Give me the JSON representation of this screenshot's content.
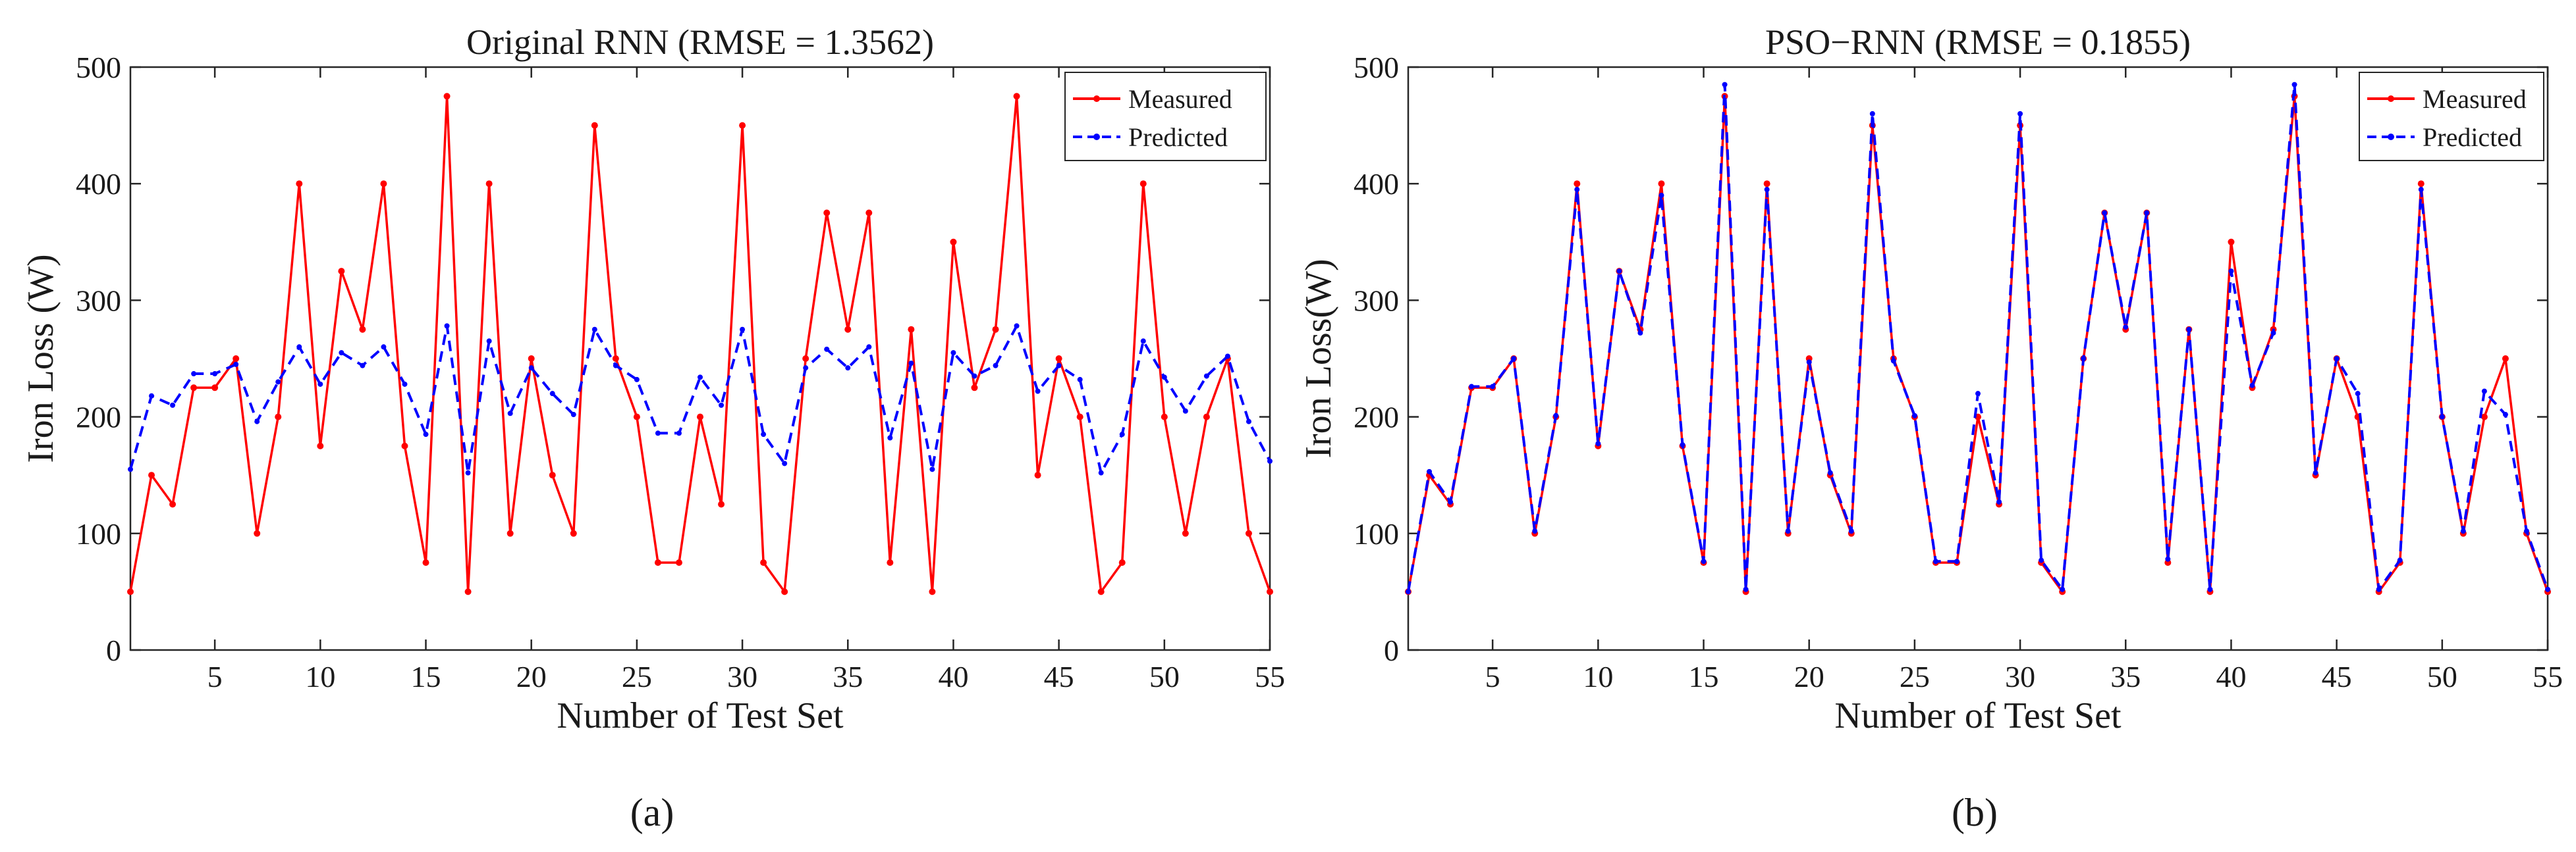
{
  "chart_data": [
    {
      "type": "line",
      "id": "a",
      "title": "Original RNN (RMSE = 1.3562)",
      "xlabel": "Number of Test Set",
      "ylabel": "Iron Loss (W)",
      "caption": "(a)",
      "xlim": [
        1,
        55
      ],
      "ylim": [
        0,
        500
      ],
      "xticks": [
        5,
        10,
        15,
        20,
        25,
        30,
        35,
        40,
        45,
        50,
        55
      ],
      "yticks": [
        0,
        100,
        200,
        300,
        400,
        500
      ],
      "legend_position": "top-right",
      "x": [
        1,
        2,
        3,
        4,
        5,
        6,
        7,
        8,
        9,
        10,
        11,
        12,
        13,
        14,
        15,
        16,
        17,
        18,
        19,
        20,
        21,
        22,
        23,
        24,
        25,
        26,
        27,
        28,
        29,
        30,
        31,
        32,
        33,
        34,
        35,
        36,
        37,
        38,
        39,
        40,
        41,
        42,
        43,
        44,
        45,
        46,
        47,
        48,
        49,
        50,
        51,
        52,
        53,
        54,
        55
      ],
      "series": [
        {
          "name": "Measured",
          "color": "#ff0000",
          "style": "solid",
          "values": [
            50,
            150,
            125,
            225,
            225,
            250,
            100,
            200,
            400,
            175,
            325,
            275,
            400,
            175,
            75,
            475,
            50,
            400,
            100,
            250,
            150,
            100,
            450,
            250,
            200,
            75,
            75,
            200,
            125,
            450,
            75,
            50,
            250,
            375,
            275,
            375,
            75,
            275,
            50,
            350,
            225,
            275,
            475,
            150,
            250,
            200,
            50,
            75,
            400,
            200,
            100,
            200,
            250,
            100,
            50
          ]
        },
        {
          "name": "Predicted",
          "color": "#0000ff",
          "style": "dashed",
          "values": [
            155,
            218,
            210,
            237,
            237,
            245,
            196,
            230,
            260,
            228,
            255,
            244,
            260,
            228,
            185,
            278,
            152,
            265,
            203,
            242,
            220,
            202,
            275,
            244,
            232,
            186,
            186,
            234,
            210,
            275,
            185,
            160,
            242,
            258,
            242,
            260,
            182,
            246,
            155,
            255,
            235,
            244,
            278,
            222,
            244,
            232,
            152,
            185,
            265,
            234,
            205,
            235,
            252,
            196,
            162
          ]
        }
      ]
    },
    {
      "type": "line",
      "id": "b",
      "title": "PSO−RNN (RMSE = 0.1855)",
      "xlabel": "Number of Test Set",
      "ylabel": "Iron Loss(W)",
      "caption": "(b)",
      "xlim": [
        1,
        55
      ],
      "ylim": [
        0,
        500
      ],
      "xticks": [
        5,
        10,
        15,
        20,
        25,
        30,
        35,
        40,
        45,
        50,
        55
      ],
      "yticks": [
        0,
        100,
        200,
        300,
        400,
        500
      ],
      "legend_position": "top-right",
      "x": [
        1,
        2,
        3,
        4,
        5,
        6,
        7,
        8,
        9,
        10,
        11,
        12,
        13,
        14,
        15,
        16,
        17,
        18,
        19,
        20,
        21,
        22,
        23,
        24,
        25,
        26,
        27,
        28,
        29,
        30,
        31,
        32,
        33,
        34,
        35,
        36,
        37,
        38,
        39,
        40,
        41,
        42,
        43,
        44,
        45,
        46,
        47,
        48,
        49,
        50,
        51,
        52,
        53,
        54,
        55
      ],
      "series": [
        {
          "name": "Measured",
          "color": "#ff0000",
          "style": "solid",
          "values": [
            50,
            150,
            125,
            225,
            225,
            250,
            100,
            200,
            400,
            175,
            325,
            275,
            400,
            175,
            75,
            475,
            50,
            400,
            100,
            250,
            150,
            100,
            450,
            250,
            200,
            75,
            75,
            200,
            125,
            450,
            75,
            50,
            250,
            375,
            275,
            375,
            75,
            275,
            50,
            350,
            225,
            275,
            475,
            150,
            250,
            200,
            50,
            75,
            400,
            200,
            100,
            200,
            250,
            100,
            50
          ]
        },
        {
          "name": "Predicted",
          "color": "#0000ff",
          "style": "dashed",
          "values": [
            50,
            153,
            127,
            226,
            226,
            250,
            102,
            201,
            395,
            177,
            325,
            272,
            390,
            176,
            76,
            485,
            52,
            395,
            102,
            247,
            152,
            102,
            460,
            248,
            201,
            76,
            76,
            220,
            127,
            460,
            77,
            52,
            250,
            375,
            277,
            375,
            78,
            275,
            52,
            325,
            227,
            272,
            485,
            152,
            250,
            220,
            52,
            77,
            395,
            200,
            102,
            222,
            202,
            102,
            52
          ]
        }
      ]
    }
  ]
}
